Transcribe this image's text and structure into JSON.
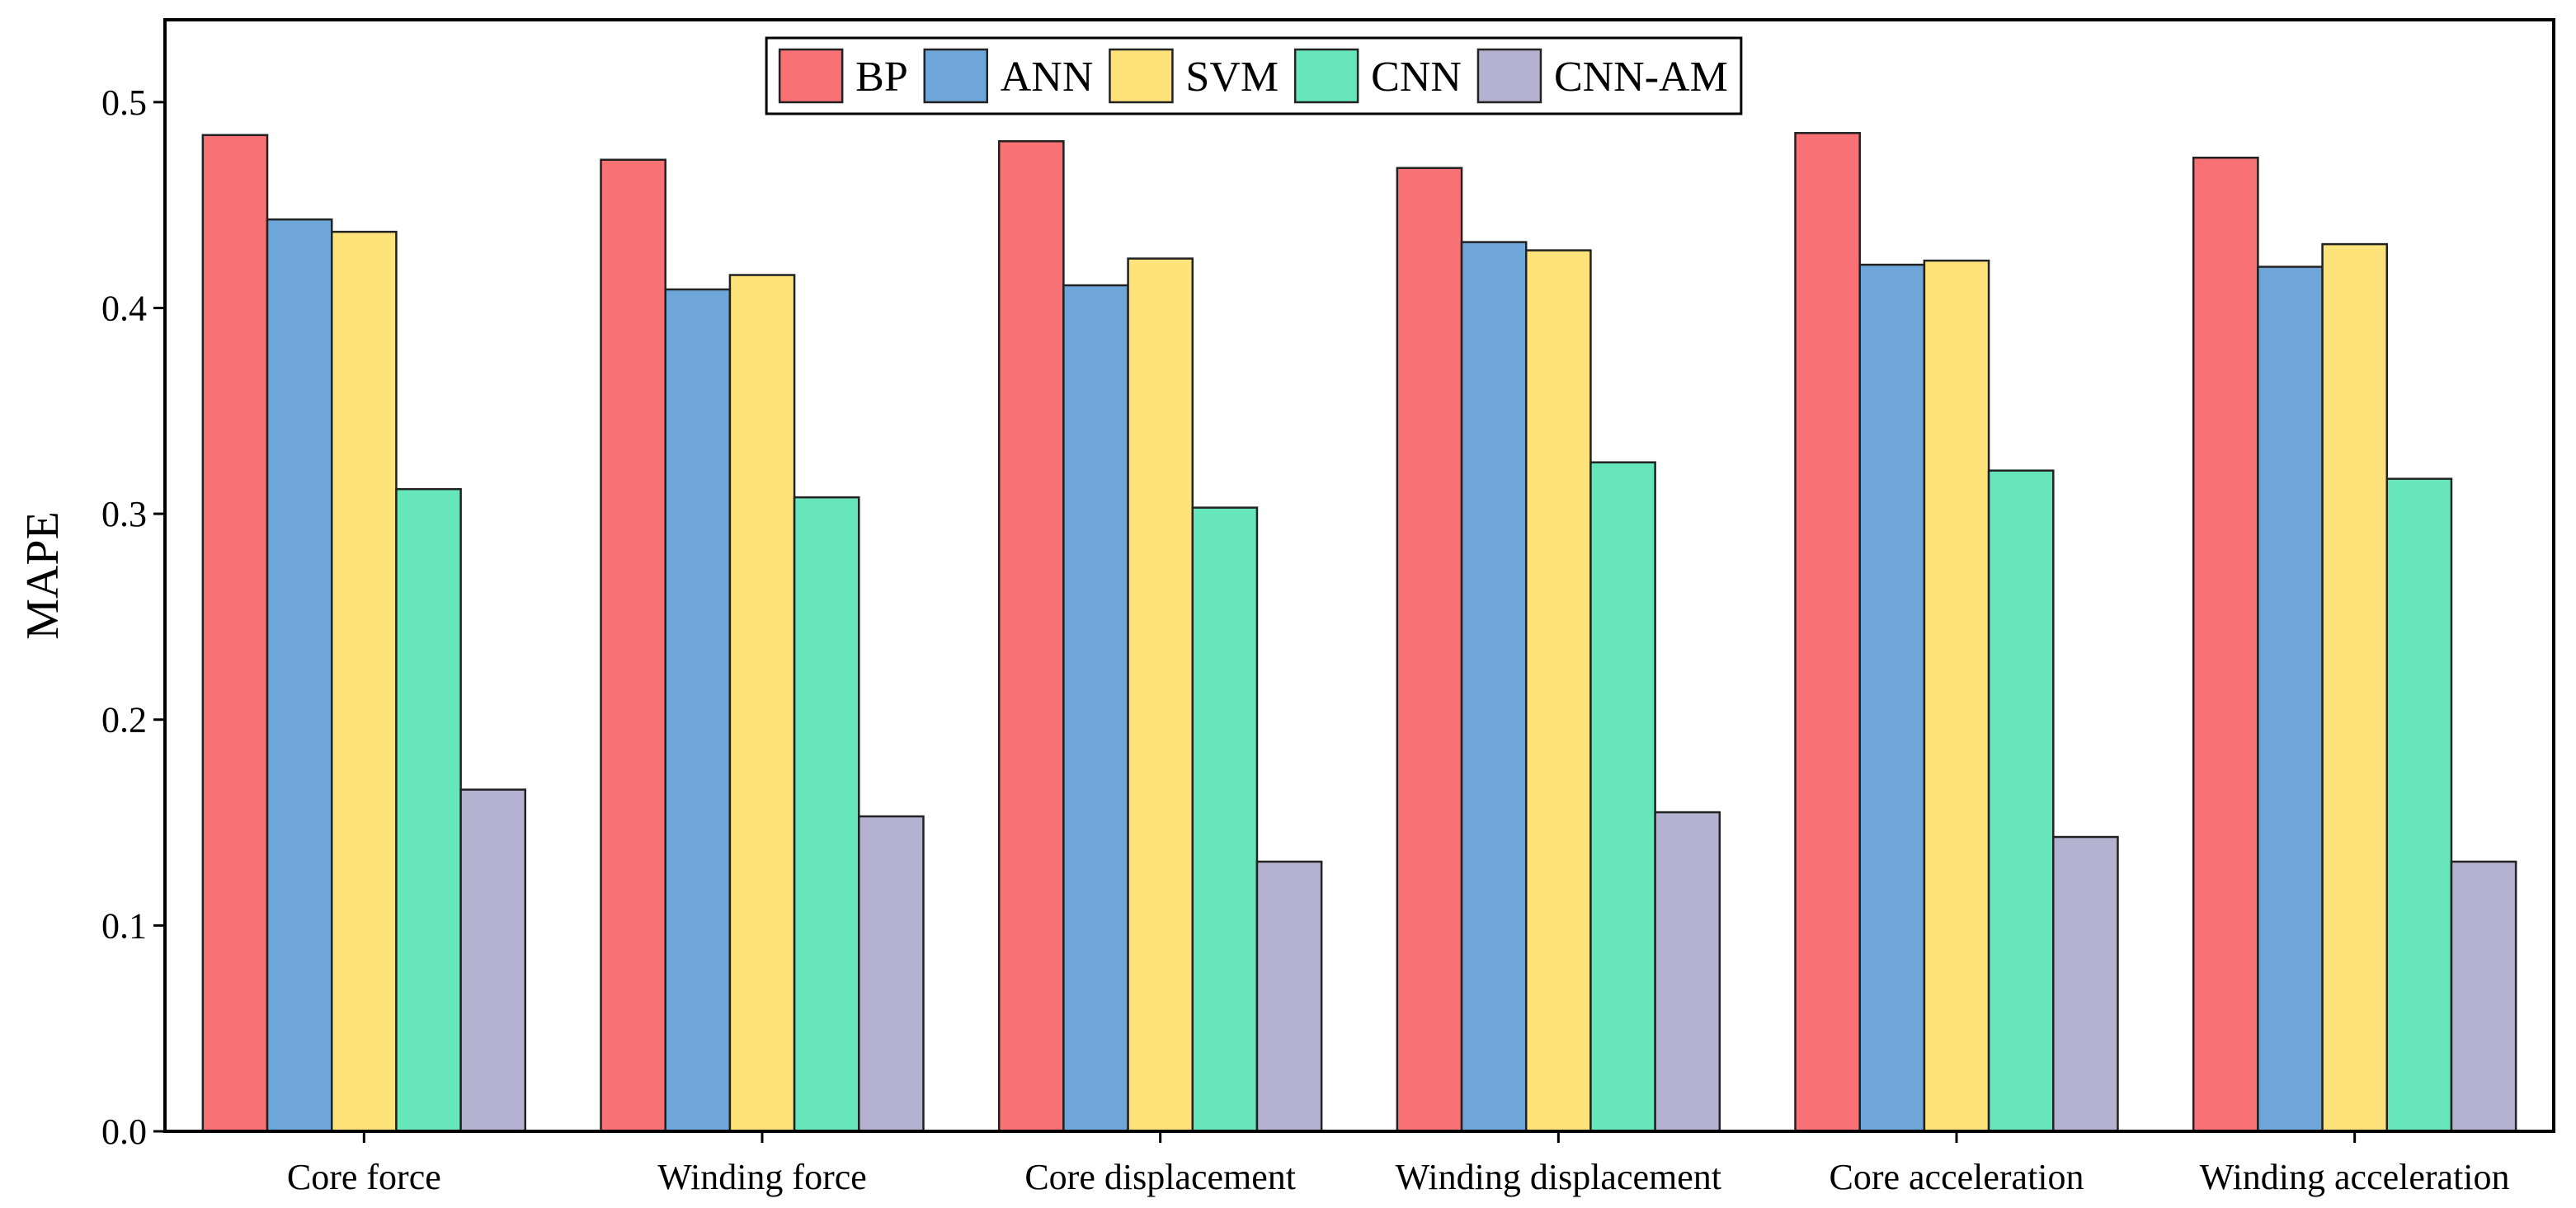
{
  "chart_data": {
    "type": "bar",
    "y_label": "MAPE",
    "categories": [
      "Core force",
      "Winding force",
      "Core displacement",
      "Winding displacement",
      "Core acceleration",
      "Winding acceleration"
    ],
    "series": [
      {
        "name": "BP",
        "color": "#f87175",
        "values": [
          0.484,
          0.472,
          0.481,
          0.468,
          0.485,
          0.473
        ]
      },
      {
        "name": "ANN",
        "color": "#6fa6da",
        "values": [
          0.443,
          0.409,
          0.411,
          0.432,
          0.421,
          0.42
        ]
      },
      {
        "name": "SVM",
        "color": "#fde37a",
        "values": [
          0.437,
          0.416,
          0.424,
          0.428,
          0.423,
          0.431
        ]
      },
      {
        "name": "CNN",
        "color": "#67e6bb",
        "values": [
          0.312,
          0.308,
          0.303,
          0.325,
          0.321,
          0.317
        ]
      },
      {
        "name": "CNN-AM",
        "color": "#b4b2d0",
        "values": [
          0.166,
          0.153,
          0.131,
          0.155,
          0.143,
          0.131
        ]
      }
    ],
    "ylim": [
      0,
      0.54
    ],
    "yticks": [
      {
        "value": 0,
        "label": "0.0"
      },
      0.1,
      0.2,
      0.3,
      0.4,
      0.5
    ],
    "legend": "top-center"
  }
}
